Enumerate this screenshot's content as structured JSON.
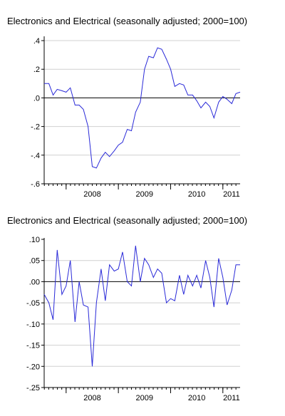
{
  "chart_data": [
    {
      "type": "line",
      "title": "Electronics and Electrical (seasonally adjusted; 2000=100)",
      "xlabel": "",
      "ylabel": "",
      "x_tick_labels": [
        "2008",
        "2009",
        "2010",
        "2011"
      ],
      "y_ticks": [
        0.4,
        0.2,
        0.0,
        -0.2,
        -0.4,
        -0.6
      ],
      "y_tick_labels": [
        ".4",
        ".2",
        ".0",
        "-.2",
        "-.4",
        "-.6"
      ],
      "ylim": [
        -0.6,
        0.42
      ],
      "x_range": [
        2007.58,
        2011.33
      ],
      "zero_line": true,
      "series_color": "#2a2ad8",
      "series": [
        {
          "x": [
            2007.58,
            2007.67,
            2007.75,
            2007.83,
            2007.92,
            2008.0,
            2008.08,
            2008.17,
            2008.25,
            2008.33,
            2008.42,
            2008.5,
            2008.58,
            2008.67,
            2008.75,
            2008.83,
            2008.92,
            2009.0,
            2009.08,
            2009.17,
            2009.25,
            2009.33,
            2009.42,
            2009.5,
            2009.58,
            2009.67,
            2009.75,
            2009.83,
            2009.92,
            2010.0,
            2010.08,
            2010.17,
            2010.25,
            2010.33,
            2010.42,
            2010.5,
            2010.58,
            2010.67,
            2010.75,
            2010.83,
            2010.92,
            2011.0,
            2011.08,
            2011.17,
            2011.25,
            2011.33
          ],
          "values": [
            0.1,
            0.1,
            0.02,
            0.06,
            0.05,
            0.04,
            0.07,
            -0.05,
            -0.05,
            -0.08,
            -0.2,
            -0.48,
            -0.49,
            -0.42,
            -0.38,
            -0.41,
            -0.37,
            -0.33,
            -0.31,
            -0.22,
            -0.23,
            -0.1,
            -0.03,
            0.2,
            0.29,
            0.28,
            0.35,
            0.34,
            0.27,
            0.2,
            0.08,
            0.1,
            0.09,
            0.02,
            0.02,
            -0.02,
            -0.07,
            -0.03,
            -0.06,
            -0.14,
            -0.03,
            0.01,
            -0.01,
            -0.04,
            0.03,
            0.04
          ]
        }
      ]
    },
    {
      "type": "line",
      "title": "Electronics and Electrical (seasonally adjusted; 2000=100)",
      "xlabel": "",
      "ylabel": "",
      "x_tick_labels": [
        "2008",
        "2009",
        "2010",
        "2011"
      ],
      "y_ticks": [
        0.1,
        0.05,
        0.0,
        -0.05,
        -0.1,
        -0.15,
        -0.2,
        -0.25
      ],
      "y_tick_labels": [
        ".10",
        ".05",
        ".00",
        "-.05",
        "-.10",
        "-.15",
        "-.20",
        "-.25"
      ],
      "ylim": [
        -0.25,
        0.1
      ],
      "x_range": [
        2007.58,
        2011.33
      ],
      "zero_line": true,
      "series_color": "#2a2ad8",
      "series": [
        {
          "x": [
            2007.58,
            2007.67,
            2007.75,
            2007.83,
            2007.92,
            2008.0,
            2008.08,
            2008.17,
            2008.25,
            2008.33,
            2008.42,
            2008.5,
            2008.58,
            2008.67,
            2008.75,
            2008.83,
            2008.92,
            2009.0,
            2009.08,
            2009.17,
            2009.25,
            2009.33,
            2009.42,
            2009.5,
            2009.58,
            2009.67,
            2009.75,
            2009.83,
            2009.92,
            2010.0,
            2010.08,
            2010.17,
            2010.25,
            2010.33,
            2010.42,
            2010.5,
            2010.58,
            2010.67,
            2010.75,
            2010.83,
            2010.92,
            2011.0,
            2011.08,
            2011.17,
            2011.25,
            2011.33
          ],
          "values": [
            -0.03,
            -0.05,
            -0.09,
            0.075,
            -0.03,
            -0.01,
            0.05,
            -0.095,
            0.0,
            -0.055,
            -0.06,
            -0.2,
            -0.05,
            0.03,
            -0.045,
            0.04,
            0.025,
            0.03,
            0.07,
            0.0,
            -0.01,
            0.085,
            0.0,
            0.055,
            0.04,
            0.01,
            0.03,
            0.02,
            -0.05,
            -0.04,
            -0.045,
            0.015,
            -0.03,
            0.015,
            -0.01,
            0.015,
            -0.015,
            0.05,
            0.01,
            -0.06,
            0.055,
            0.01,
            -0.055,
            -0.02,
            0.04,
            0.04
          ]
        }
      ]
    }
  ]
}
